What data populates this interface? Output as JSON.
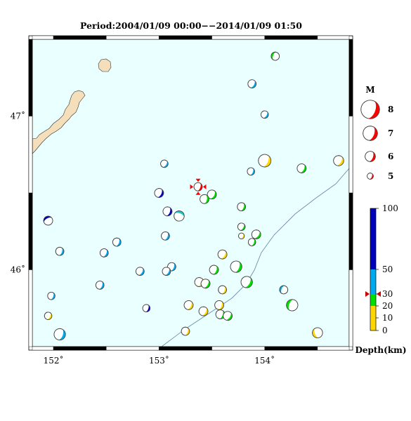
{
  "title": "Period:2004/01/09 00:00−−2014/01/09 01:50",
  "map": {
    "lon_range": [
      151.8,
      154.8
    ],
    "lat_range": [
      45.5,
      47.5
    ],
    "lon_ticks": [
      {
        "value": 152,
        "label": "152˚"
      },
      {
        "value": 153,
        "label": "153˚"
      },
      {
        "value": 154,
        "label": "154˚"
      }
    ],
    "lat_ticks": [
      {
        "value": 47,
        "label": "47˚"
      },
      {
        "value": 46,
        "label": "46˚"
      }
    ],
    "ocean_color": "#eaffff",
    "land_color": "#f5dfba",
    "trench_color": "#6e8fa6"
  },
  "magnitude_legend": {
    "label": "M",
    "entries": [
      {
        "magnitude": 8,
        "label": "8"
      },
      {
        "magnitude": 7,
        "label": "7"
      },
      {
        "magnitude": 6,
        "label": "6"
      },
      {
        "magnitude": 5,
        "label": "5"
      }
    ]
  },
  "depth_legend": {
    "label": "Depth(km)",
    "ticks": [
      {
        "depth": 100,
        "label": "100"
      },
      {
        "depth": 50,
        "label": "50"
      },
      {
        "depth": 30,
        "label": "30"
      },
      {
        "depth": 20,
        "label": "20"
      },
      {
        "depth": 10,
        "label": "10"
      },
      {
        "depth": 0,
        "label": "0"
      }
    ],
    "bands": [
      {
        "from": 0,
        "to": 10,
        "color": "#ffd700"
      },
      {
        "from": 10,
        "to": 20,
        "color": "#ffd700"
      },
      {
        "from": 20,
        "to": 30,
        "color": "#00e000"
      },
      {
        "from": 30,
        "to": 50,
        "color": "#00aaee"
      },
      {
        "from": 50,
        "to": 100,
        "color": "#0000bb"
      }
    ],
    "highlight_depth": 30
  },
  "latest_event": {
    "lon": 153.37,
    "lat": 46.54,
    "magnitude": 6,
    "color": "#ff0000"
  },
  "events": [
    {
      "lon": 154.1,
      "lat": 47.39,
      "mag": 5.6,
      "color": "#00e000",
      "rot": 200
    },
    {
      "lon": 153.88,
      "lat": 47.21,
      "mag": 5.6,
      "color": "#00aaee",
      "rot": 30
    },
    {
      "lon": 154.0,
      "lat": 47.01,
      "mag": 5.4,
      "color": "#00aaee",
      "rot": 35
    },
    {
      "lon": 154.0,
      "lat": 46.71,
      "mag": 6.7,
      "color": "#ffd700",
      "rot": 25
    },
    {
      "lon": 154.7,
      "lat": 46.71,
      "mag": 6.1,
      "color": "#ffd700",
      "rot": 30
    },
    {
      "lon": 154.35,
      "lat": 46.66,
      "mag": 5.8,
      "color": "#00e000",
      "rot": 25
    },
    {
      "lon": 153.87,
      "lat": 46.64,
      "mag": 5.4,
      "color": "#00aaee",
      "rot": 20
    },
    {
      "lon": 153.05,
      "lat": 46.69,
      "mag": 5.4,
      "color": "#00aaee",
      "rot": 35
    },
    {
      "lon": 153.0,
      "lat": 46.5,
      "mag": 5.8,
      "color": "#0000bb",
      "rot": 25
    },
    {
      "lon": 153.5,
      "lat": 46.49,
      "mag": 5.8,
      "color": "#00e000",
      "rot": 30
    },
    {
      "lon": 153.43,
      "lat": 46.46,
      "mag": 5.8,
      "color": "#00e000",
      "rot": 10
    },
    {
      "lon": 153.08,
      "lat": 46.38,
      "mag": 5.8,
      "color": "#0000bb",
      "rot": 20
    },
    {
      "lon": 153.19,
      "lat": 46.35,
      "mag": 6.1,
      "color": "#1ec8c8",
      "rot": 290
    },
    {
      "lon": 153.78,
      "lat": 46.41,
      "mag": 5.6,
      "color": "#00e000",
      "rot": 20
    },
    {
      "lon": 151.95,
      "lat": 46.32,
      "mag": 5.8,
      "color": "#0000bb",
      "rot": 240
    },
    {
      "lon": 153.78,
      "lat": 46.28,
      "mag": 5.4,
      "color": "#00e000",
      "rot": 30
    },
    {
      "lon": 153.06,
      "lat": 46.22,
      "mag": 5.6,
      "color": "#00aaee",
      "rot": 20
    },
    {
      "lon": 153.78,
      "lat": 46.22,
      "mag": 5.0,
      "color": "#ffd700",
      "rot": 30
    },
    {
      "lon": 153.88,
      "lat": 46.18,
      "mag": 5.4,
      "color": "#00e000",
      "rot": 20
    },
    {
      "lon": 153.92,
      "lat": 46.23,
      "mag": 5.8,
      "color": "#00e000",
      "rot": 40
    },
    {
      "lon": 152.6,
      "lat": 46.18,
      "mag": 5.6,
      "color": "#00aaee",
      "rot": 20
    },
    {
      "lon": 152.48,
      "lat": 46.11,
      "mag": 5.6,
      "color": "#00aaee",
      "rot": 25
    },
    {
      "lon": 152.06,
      "lat": 46.12,
      "mag": 5.6,
      "color": "#00aaee",
      "rot": 20
    },
    {
      "lon": 153.6,
      "lat": 46.1,
      "mag": 5.8,
      "color": "#ffd700",
      "rot": 30
    },
    {
      "lon": 153.12,
      "lat": 46.02,
      "mag": 5.6,
      "color": "#00aaee",
      "rot": 20
    },
    {
      "lon": 153.07,
      "lat": 45.99,
      "mag": 5.6,
      "color": "#00aaee",
      "rot": 30
    },
    {
      "lon": 152.82,
      "lat": 45.99,
      "mag": 5.6,
      "color": "#00aaee",
      "rot": 30
    },
    {
      "lon": 153.52,
      "lat": 46.0,
      "mag": 5.8,
      "color": "#00e000",
      "rot": 20
    },
    {
      "lon": 153.73,
      "lat": 46.02,
      "mag": 6.4,
      "color": "#00e000",
      "rot": 20
    },
    {
      "lon": 153.83,
      "lat": 45.92,
      "mag": 6.4,
      "color": "#00e000",
      "rot": 30
    },
    {
      "lon": 153.38,
      "lat": 45.92,
      "mag": 5.8,
      "color": "#ffd700",
      "rot": 30
    },
    {
      "lon": 153.44,
      "lat": 45.91,
      "mag": 5.8,
      "color": "#00e000",
      "rot": 30
    },
    {
      "lon": 153.6,
      "lat": 45.87,
      "mag": 5.6,
      "color": "#ffd700",
      "rot": 20
    },
    {
      "lon": 152.44,
      "lat": 45.9,
      "mag": 5.6,
      "color": "#00aaee",
      "rot": 20
    },
    {
      "lon": 154.18,
      "lat": 45.87,
      "mag": 5.6,
      "color": "#00aaee",
      "rot": 200
    },
    {
      "lon": 151.98,
      "lat": 45.83,
      "mag": 5.4,
      "color": "#00aaee",
      "rot": 20
    },
    {
      "lon": 154.26,
      "lat": 45.77,
      "mag": 6.4,
      "color": "#00e000",
      "rot": 200
    },
    {
      "lon": 153.28,
      "lat": 45.77,
      "mag": 5.8,
      "color": "#ffd700",
      "rot": 25
    },
    {
      "lon": 153.42,
      "lat": 45.73,
      "mag": 5.8,
      "color": "#ffd700",
      "rot": 30
    },
    {
      "lon": 153.57,
      "lat": 45.77,
      "mag": 5.8,
      "color": "#ffd700",
      "rot": 20
    },
    {
      "lon": 153.58,
      "lat": 45.71,
      "mag": 5.8,
      "color": "#00e000",
      "rot": 20
    },
    {
      "lon": 153.65,
      "lat": 45.7,
      "mag": 5.8,
      "color": "#00e000",
      "rot": 35
    },
    {
      "lon": 152.88,
      "lat": 45.75,
      "mag": 5.4,
      "color": "#0000bb",
      "rot": 20
    },
    {
      "lon": 151.95,
      "lat": 45.7,
      "mag": 5.4,
      "color": "#ffd700",
      "rot": 30
    },
    {
      "lon": 153.25,
      "lat": 45.6,
      "mag": 5.6,
      "color": "#ffd700",
      "rot": 20
    },
    {
      "lon": 152.06,
      "lat": 45.58,
      "mag": 6.4,
      "color": "#00aaee",
      "rot": 20
    },
    {
      "lon": 154.5,
      "lat": 45.59,
      "mag": 6.1,
      "color": "#ffd700",
      "rot": 160
    }
  ]
}
